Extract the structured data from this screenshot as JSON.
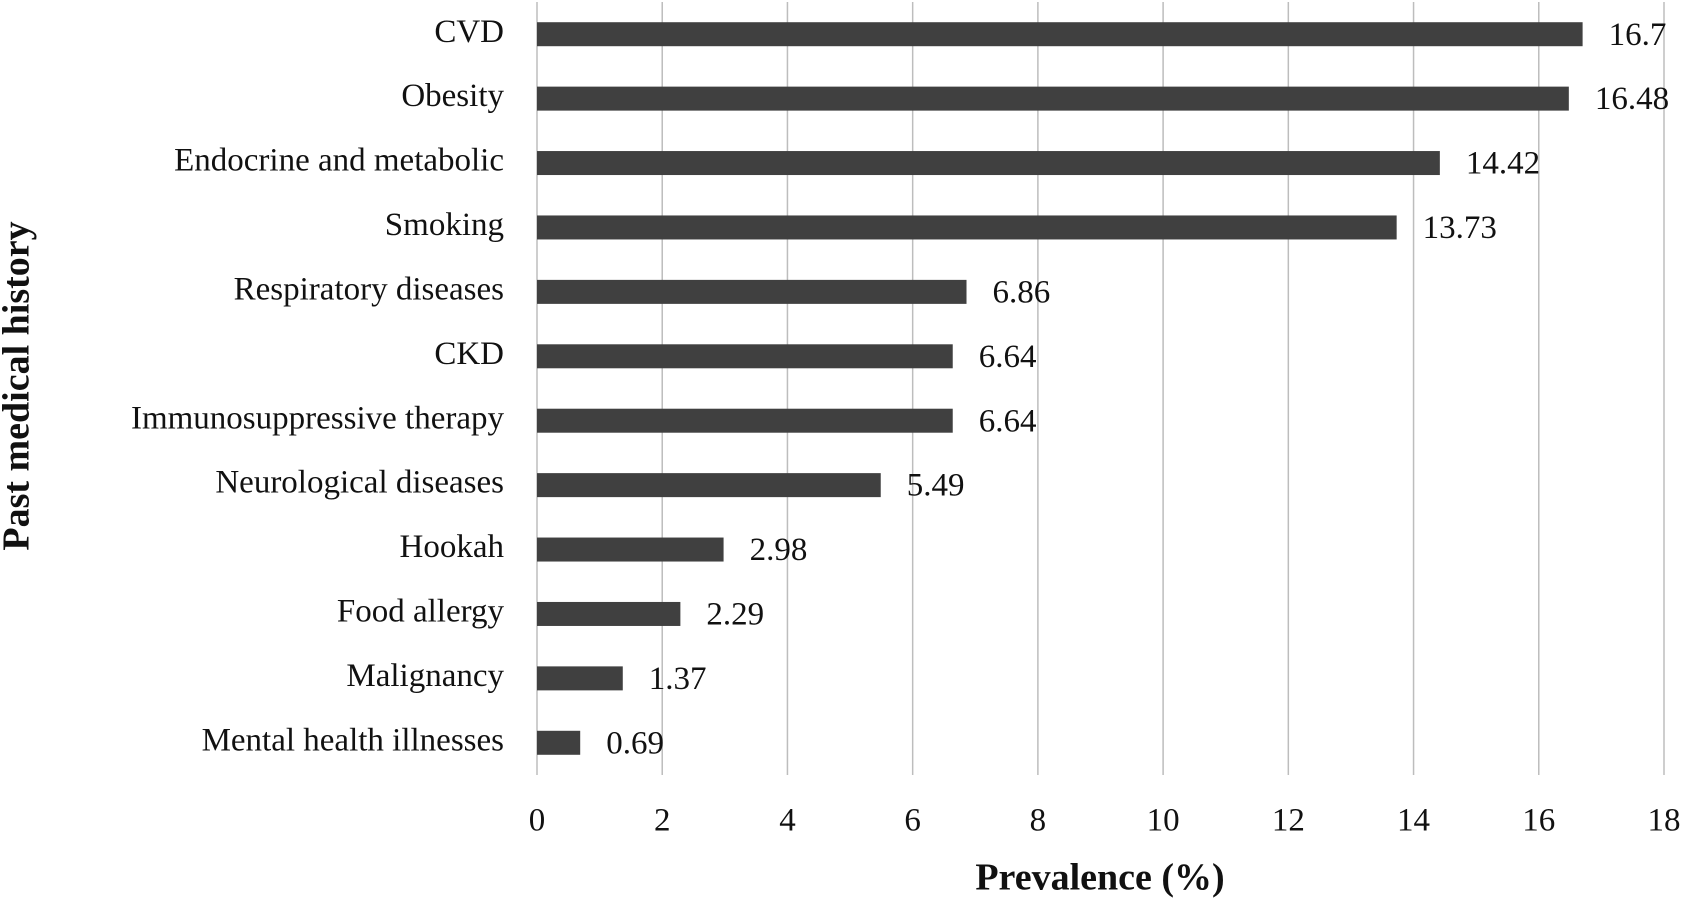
{
  "chart_data": {
    "type": "bar",
    "orientation": "horizontal",
    "x_label": "Prevalence (%)",
    "y_label": "Past medical history",
    "categories": [
      "CVD",
      "Obesity",
      "Endocrine and metabolic",
      "Smoking",
      "Respiratory diseases",
      "CKD",
      "Immunosuppressive therapy",
      "Neurological diseases",
      "Hookah",
      "Food allergy",
      "Malignancy",
      "Mental health illnesses"
    ],
    "values": [
      16.7,
      16.48,
      14.42,
      13.73,
      6.86,
      6.64,
      6.64,
      5.49,
      2.98,
      2.29,
      1.37,
      0.69
    ],
    "color": "#404040",
    "xlim": [
      0,
      18
    ],
    "xticks": [
      0,
      2,
      4,
      6,
      8,
      10,
      12,
      14,
      16,
      18
    ],
    "grid": true
  }
}
